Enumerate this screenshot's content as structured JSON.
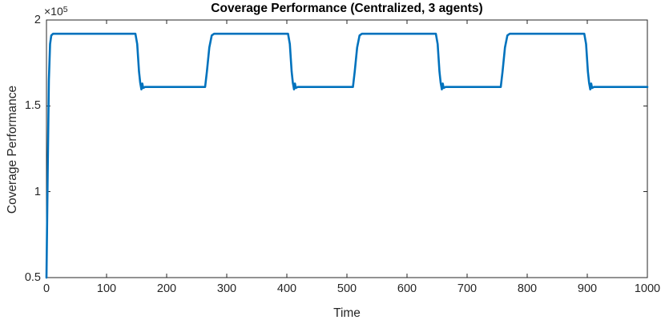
{
  "figure": {
    "title": "Coverage Performance (Centralized, 3 agents)",
    "xlabel": "Time",
    "ylabel": "Coverage Performance",
    "y_multiplier_base": "×10",
    "y_multiplier_exp": "5",
    "colors": {
      "line": "#0072BD",
      "axis": "#262626",
      "title": "#000000",
      "background": "#FFFFFF"
    }
  },
  "chart_data": {
    "type": "line",
    "title": "Coverage Performance (Centralized, 3 agents)",
    "xlabel": "Time",
    "ylabel": "Coverage Performance",
    "xlim": [
      0,
      1000
    ],
    "ylim": [
      50000,
      200000
    ],
    "grid": false,
    "legend": null,
    "box": true,
    "y_axis_multiplier_label": "×10^5",
    "x_ticks": [
      {
        "value": 0,
        "label": "0"
      },
      {
        "value": 100,
        "label": "100"
      },
      {
        "value": 200,
        "label": "200"
      },
      {
        "value": 300,
        "label": "300"
      },
      {
        "value": 400,
        "label": "400"
      },
      {
        "value": 500,
        "label": "500"
      },
      {
        "value": 600,
        "label": "600"
      },
      {
        "value": 700,
        "label": "700"
      },
      {
        "value": 800,
        "label": "800"
      },
      {
        "value": 900,
        "label": "900"
      },
      {
        "value": 1000,
        "label": "1000"
      }
    ],
    "y_ticks": [
      {
        "value": 50000,
        "label": "0.5"
      },
      {
        "value": 100000,
        "label": "1"
      },
      {
        "value": 150000,
        "label": "1.5"
      },
      {
        "value": 200000,
        "label": "2"
      }
    ],
    "series": [
      {
        "name": "coverage-performance",
        "color": "#0072BD",
        "high_plateau": 192000,
        "low_plateau": 161000,
        "points": [
          [
            0,
            50000
          ],
          [
            2,
            110000
          ],
          [
            4,
            165000
          ],
          [
            6,
            186000
          ],
          [
            8,
            191000
          ],
          [
            11,
            192000
          ],
          [
            148,
            192000
          ],
          [
            151,
            186000
          ],
          [
            154,
            170000
          ],
          [
            156,
            163500
          ],
          [
            158,
            159600
          ],
          [
            159.5,
            163000
          ],
          [
            161,
            160400
          ],
          [
            164,
            161000
          ],
          [
            264,
            161000
          ],
          [
            267,
            170000
          ],
          [
            271,
            184000
          ],
          [
            275,
            191000
          ],
          [
            279,
            192000
          ],
          [
            402,
            192000
          ],
          [
            405,
            186000
          ],
          [
            408,
            170000
          ],
          [
            410,
            163500
          ],
          [
            412,
            159600
          ],
          [
            413.5,
            163000
          ],
          [
            415,
            160400
          ],
          [
            418,
            161000
          ],
          [
            510,
            161000
          ],
          [
            513,
            170000
          ],
          [
            517,
            184000
          ],
          [
            521,
            191000
          ],
          [
            525,
            192000
          ],
          [
            648,
            192000
          ],
          [
            651,
            186000
          ],
          [
            654,
            170000
          ],
          [
            656,
            163500
          ],
          [
            658,
            159600
          ],
          [
            659.5,
            163000
          ],
          [
            661,
            160400
          ],
          [
            664,
            161000
          ],
          [
            756,
            161000
          ],
          [
            759,
            170000
          ],
          [
            763,
            184000
          ],
          [
            767,
            191000
          ],
          [
            771,
            192000
          ],
          [
            895,
            192000
          ],
          [
            898,
            186000
          ],
          [
            901,
            170000
          ],
          [
            903,
            163500
          ],
          [
            905,
            159600
          ],
          [
            906.5,
            163000
          ],
          [
            908,
            160400
          ],
          [
            911,
            161000
          ],
          [
            1000,
            161000
          ]
        ]
      }
    ]
  }
}
